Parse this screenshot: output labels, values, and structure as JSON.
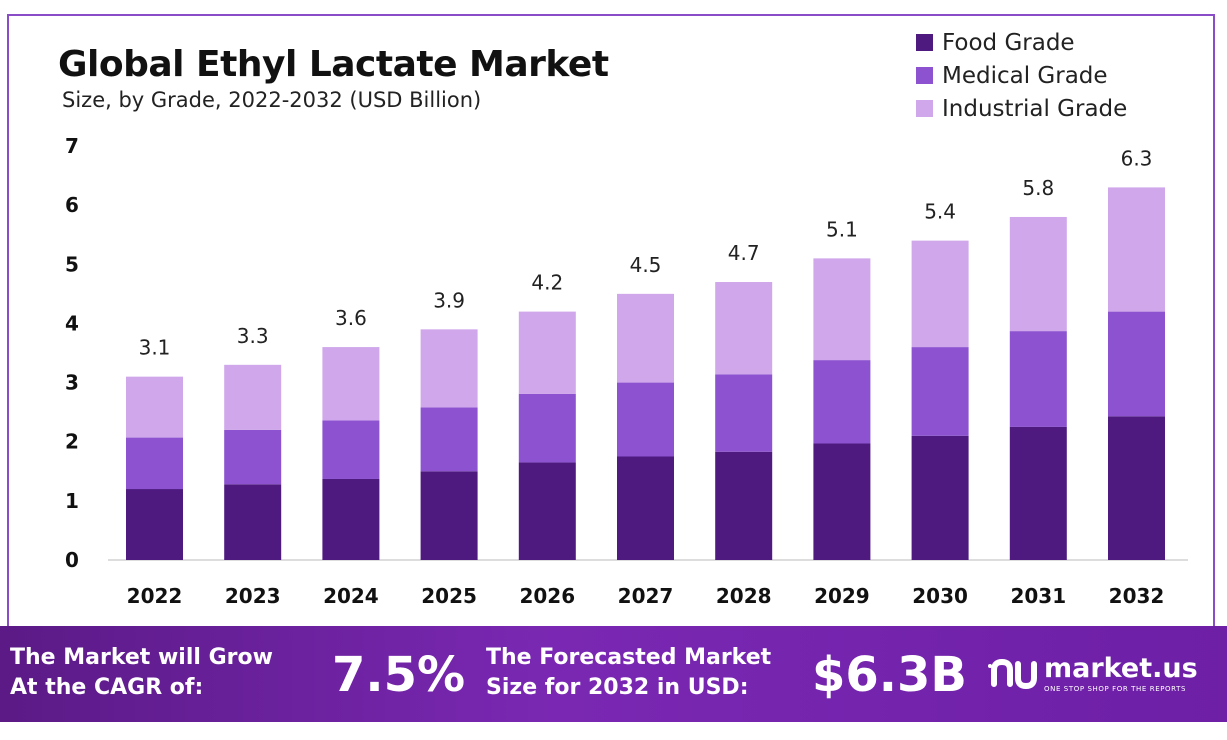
{
  "header": {
    "title": "Global Ethyl Lactate Market",
    "subtitle": "Size, by Grade, 2022-2032 (USD Billion)"
  },
  "legend": {
    "items": [
      {
        "label": "Food Grade",
        "color": "#4e1a80"
      },
      {
        "label": "Medical Grade",
        "color": "#8c52cf"
      },
      {
        "label": "Industrial Grade",
        "color": "#cfa7ea"
      }
    ]
  },
  "chart_data": {
    "type": "bar",
    "stacked": true,
    "categories": [
      "2022",
      "2023",
      "2024",
      "2025",
      "2026",
      "2027",
      "2028",
      "2029",
      "2030",
      "2031",
      "2032"
    ],
    "series": [
      {
        "name": "Food Grade",
        "color": "#4e1a80",
        "values": [
          1.2,
          1.28,
          1.37,
          1.5,
          1.65,
          1.75,
          1.83,
          1.97,
          2.1,
          2.25,
          2.43
        ]
      },
      {
        "name": "Medical Grade",
        "color": "#8c52cf",
        "values": [
          0.87,
          0.92,
          0.99,
          1.08,
          1.16,
          1.25,
          1.31,
          1.41,
          1.5,
          1.62,
          1.77
        ]
      },
      {
        "name": "Industrial Grade",
        "color": "#cfa7ea",
        "values": [
          1.03,
          1.1,
          1.24,
          1.32,
          1.39,
          1.5,
          1.56,
          1.72,
          1.8,
          1.93,
          2.1
        ]
      }
    ],
    "totals": [
      3.1,
      3.3,
      3.6,
      3.9,
      4.2,
      4.5,
      4.7,
      5.1,
      5.4,
      5.8,
      6.3
    ],
    "y_ticks": [
      0,
      1,
      2,
      3,
      4,
      5,
      6,
      7
    ],
    "ylim": [
      0,
      7
    ],
    "grid": false,
    "legend_position": "top-right"
  },
  "banner": {
    "cagr_label": "The Market will Grow\nAt the CAGR of:",
    "cagr_value": "7.5%",
    "forecast_label": "The Forecasted Market\nSize for 2032 in USD:",
    "forecast_value": "$6.3B",
    "brand_name": "market.us",
    "brand_tagline": "ONE STOP SHOP FOR THE REPORTS"
  }
}
